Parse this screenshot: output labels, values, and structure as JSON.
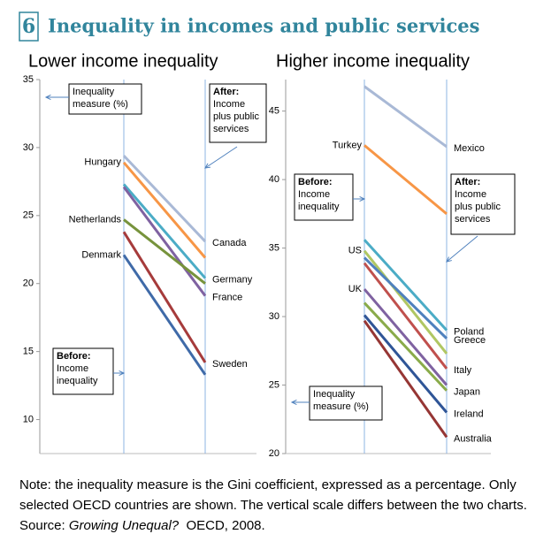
{
  "header": {
    "number": "6",
    "title": "Inequality in incomes and public services"
  },
  "chart_data": [
    {
      "type": "slope",
      "title": "Lower income inequality",
      "ylim": [
        7.5,
        35
      ],
      "yticks": [
        10,
        15,
        20,
        25,
        30,
        35
      ],
      "series": [
        {
          "name": "Canada",
          "color": "#a9b9d6",
          "values": [
            29.4,
            23.1
          ],
          "label_side": "after"
        },
        {
          "name": "Hungary",
          "color": "#f79646",
          "values": [
            28.9,
            21.9
          ],
          "label_side": "before"
        },
        {
          "name": "Germany",
          "color": "#4bacc6",
          "values": [
            27.3,
            20.4
          ],
          "label_side": "after"
        },
        {
          "name": "France",
          "color": "#7f62a1",
          "values": [
            27.1,
            19.1
          ],
          "label_side": "after"
        },
        {
          "name": "Netherlands",
          "color": "#77933c",
          "values": [
            24.7,
            20.0
          ],
          "label_side": "before"
        },
        {
          "name": "Sweden",
          "color": "#a63b3b",
          "values": [
            23.8,
            14.2
          ],
          "label_side": "after"
        },
        {
          "name": "Denmark",
          "color": "#3f6aa8",
          "values": [
            22.1,
            13.3
          ],
          "label_side": "before"
        }
      ],
      "annotations": [
        {
          "lines": [
            "Inequality",
            "measure (%)"
          ],
          "bold_first": false
        },
        {
          "lines": [
            "After:",
            "Income",
            "plus public",
            "services"
          ],
          "bold_first": true
        },
        {
          "lines": [
            "Before:",
            "Income",
            "inequality"
          ],
          "bold_first": true
        }
      ]
    },
    {
      "type": "slope",
      "title": "Higher income inequality",
      "ylim": [
        20,
        47.3
      ],
      "yticks": [
        20,
        25,
        30,
        35,
        40,
        45
      ],
      "series": [
        {
          "name": "Mexico",
          "color": "#a9b9d6",
          "values": [
            46.8,
            42.4
          ],
          "label_side": "after"
        },
        {
          "name": "Turkey",
          "color": "#f79646",
          "values": [
            42.5,
            37.5
          ],
          "label_side": "before"
        },
        {
          "name": "Poland",
          "color": "#4bacc6",
          "values": [
            35.6,
            29.0
          ],
          "label_side": "after"
        },
        {
          "name": "US",
          "color": "#b0c763",
          "values": [
            34.8,
            27.3
          ],
          "label_side": "before"
        },
        {
          "name": "Greece",
          "color": "#4f81bd",
          "values": [
            34.3,
            28.4
          ],
          "label_side": "after"
        },
        {
          "name": "Italy",
          "color": "#c0504d",
          "values": [
            33.9,
            26.2
          ],
          "label_side": "after"
        },
        {
          "name": "UK",
          "color": "#7f62a1",
          "values": [
            32.0,
            25.0
          ],
          "label_side": "before"
        },
        {
          "name": "Japan",
          "color": "#8aab4a",
          "values": [
            31.0,
            24.6
          ],
          "label_side": "after"
        },
        {
          "name": "Ireland",
          "color": "#2f5597",
          "values": [
            30.1,
            23.0
          ],
          "label_side": "after"
        },
        {
          "name": "Australia",
          "color": "#963634",
          "values": [
            29.7,
            21.2
          ],
          "label_side": "after"
        }
      ],
      "annotations": [
        {
          "lines": [
            "Before:",
            "Income",
            "inequality"
          ],
          "bold_first": true
        },
        {
          "lines": [
            "After:",
            "Income",
            "plus public",
            "services"
          ],
          "bold_first": true
        },
        {
          "lines": [
            "Inequality",
            "measure (%)"
          ],
          "bold_first": false
        }
      ]
    }
  ],
  "note": "Note: the inequality measure is the Gini coefficient, expressed as a percentage. Only selected OECD countries are shown. The vertical scale differs between the two charts.",
  "source": {
    "label": "Source:",
    "title": "Growing Unequal?",
    "rest": "OECD, 2008."
  }
}
